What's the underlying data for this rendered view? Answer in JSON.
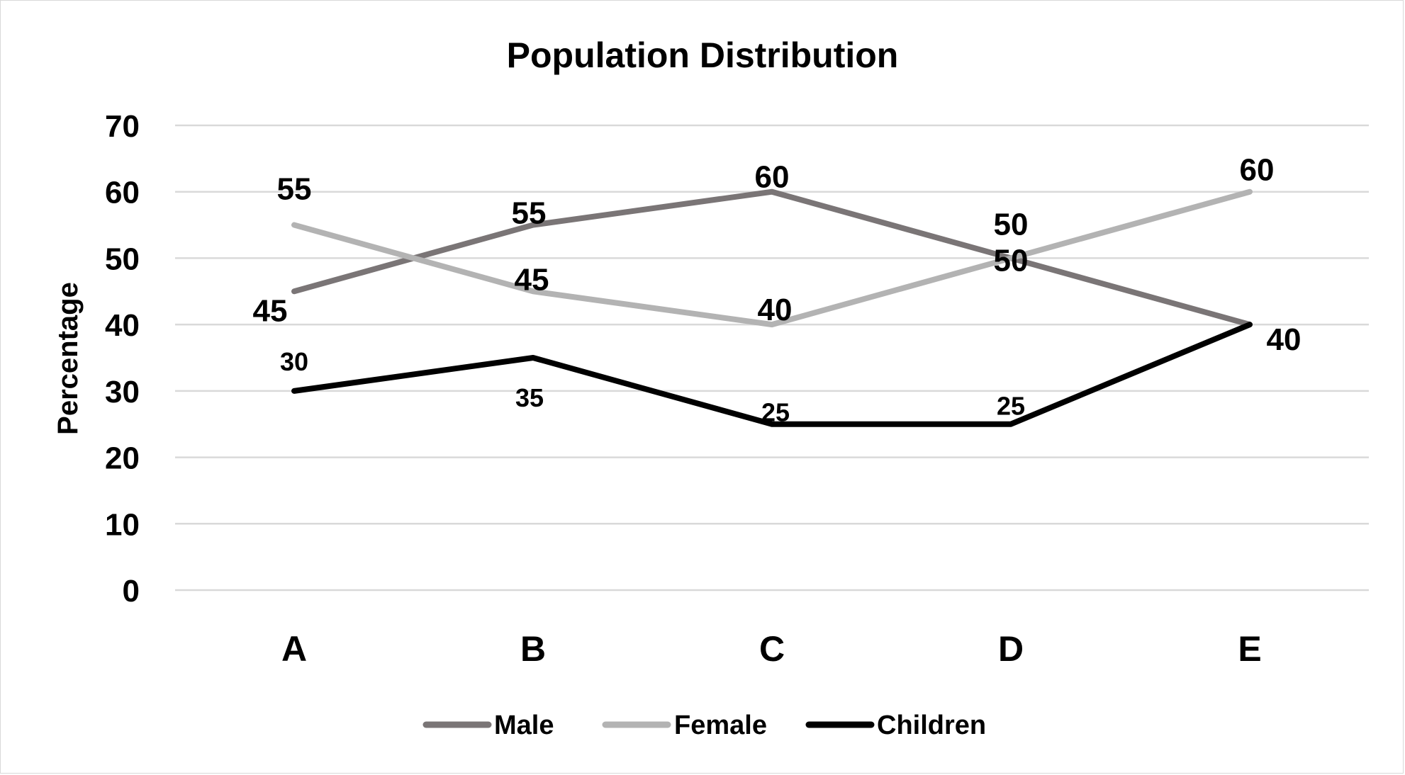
{
  "chart_data": {
    "type": "line",
    "title": "Population Distribution",
    "xlabel": "",
    "ylabel": "Percentage",
    "categories": [
      "A",
      "B",
      "C",
      "D",
      "E"
    ],
    "ylim": [
      0,
      70
    ],
    "yticks": [
      0,
      10,
      20,
      30,
      40,
      50,
      60,
      70
    ],
    "grid": true,
    "legend_position": "bottom",
    "series": [
      {
        "name": "Male",
        "values": [
          45,
          55,
          60,
          50,
          40
        ],
        "color": "#7a7576"
      },
      {
        "name": "Female",
        "values": [
          55,
          45,
          40,
          50,
          60
        ],
        "color": "#b3b3b3"
      },
      {
        "name": "Children",
        "values": [
          30,
          35,
          25,
          25,
          40
        ],
        "color": "#000000"
      }
    ]
  }
}
